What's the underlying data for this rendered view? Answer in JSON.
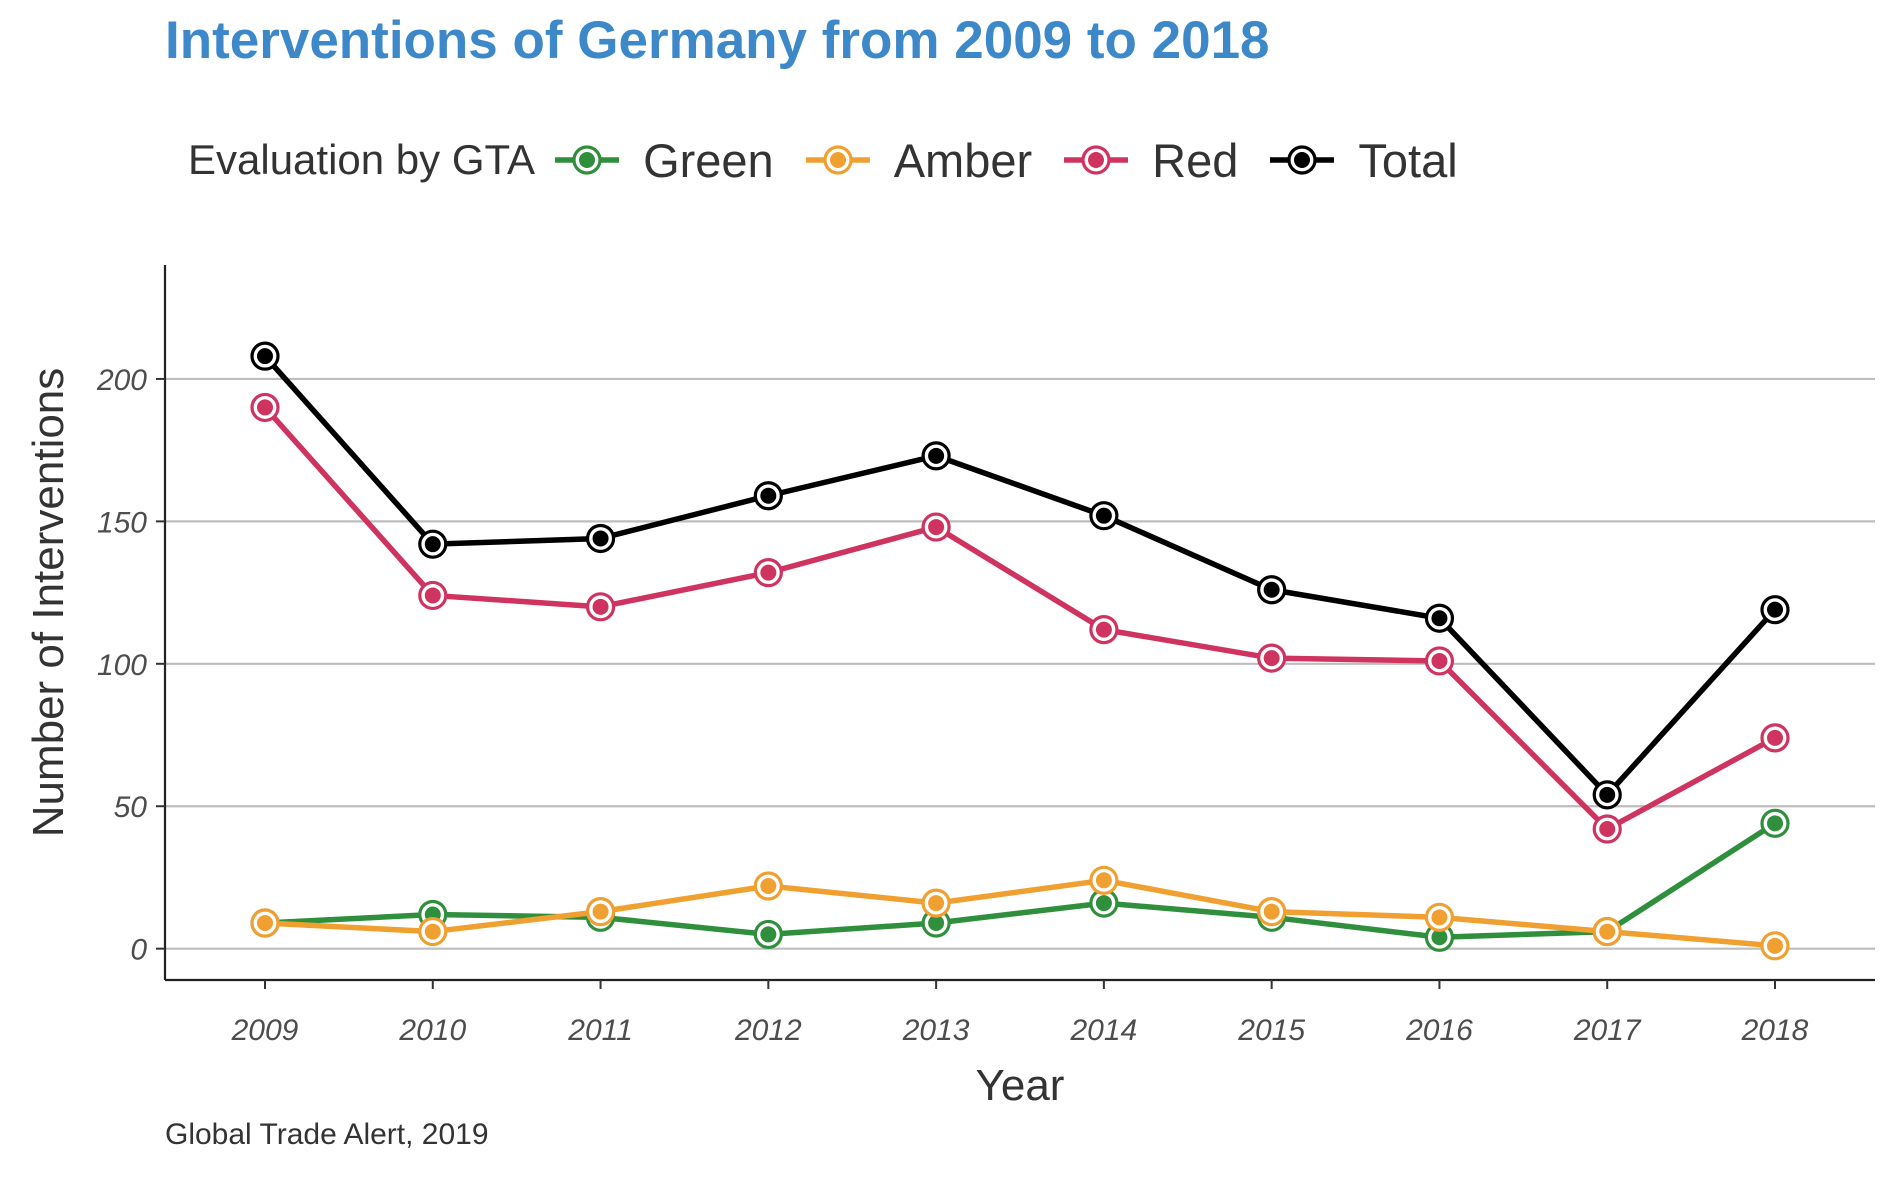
{
  "title": "Interventions of Germany from 2009 to 2018",
  "caption": "Global Trade Alert, 2019",
  "legend": {
    "title": "Evaluation by GTA",
    "items": [
      {
        "label": "Green",
        "color": "#2f8f3d"
      },
      {
        "label": "Amber",
        "color": "#f0a030"
      },
      {
        "label": "Red",
        "color": "#cf3360"
      },
      {
        "label": "Total",
        "color": "#000000"
      }
    ]
  },
  "chart_data": {
    "type": "line",
    "title": "Interventions of Germany from 2009 to 2018",
    "xlabel": "Year",
    "ylabel": "Number of Interventions",
    "x": [
      2009,
      2010,
      2011,
      2012,
      2013,
      2014,
      2015,
      2016,
      2017,
      2018
    ],
    "ylim": [
      -11,
      240
    ],
    "yticks": [
      0,
      50,
      100,
      150,
      200
    ],
    "grid": "horizontal",
    "legend_position": "top",
    "series": [
      {
        "name": "Green",
        "color": "#2f8f3d",
        "values": [
          9,
          12,
          11,
          5,
          9,
          16,
          11,
          4,
          6,
          44
        ]
      },
      {
        "name": "Amber",
        "color": "#f0a030",
        "values": [
          9,
          6,
          13,
          22,
          16,
          24,
          13,
          11,
          6,
          1
        ]
      },
      {
        "name": "Red",
        "color": "#cf3360",
        "values": [
          190,
          124,
          120,
          132,
          148,
          112,
          102,
          101,
          42,
          74
        ]
      },
      {
        "name": "Total",
        "color": "#000000",
        "values": [
          208,
          142,
          144,
          159,
          173,
          152,
          126,
          116,
          54,
          119
        ]
      }
    ]
  }
}
